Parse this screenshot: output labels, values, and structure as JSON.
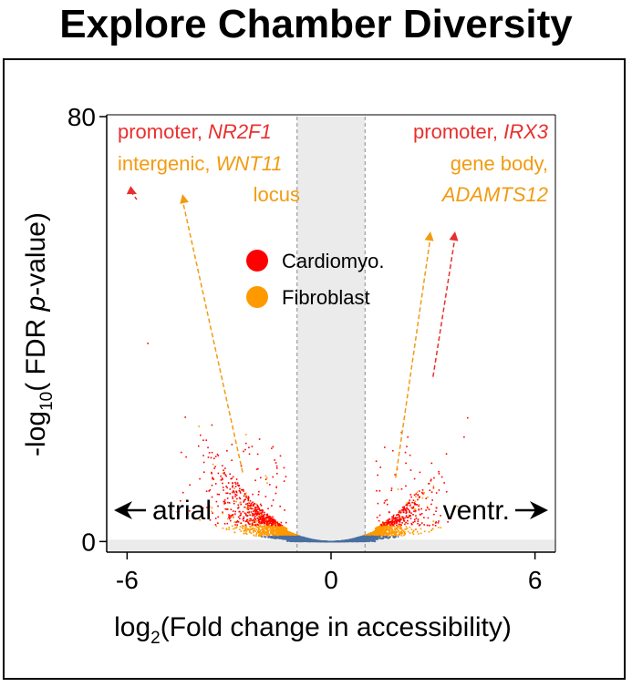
{
  "title": "Explore Chamber Diversity",
  "chart_data": {
    "type": "scatter",
    "title": "",
    "xlabel": "log2(Fold change in accessibility)",
    "xlabel_parts": {
      "pre": "log",
      "sub": "2",
      "post": "(Fold change in accessibility)"
    },
    "ylabel": "-log10( FDR p-value)",
    "ylabel_parts": {
      "pre": "-log",
      "sub": "10",
      "mid": "( FDR ",
      "italic": "p",
      "post": "-value)"
    },
    "xlim": [
      -6.6,
      6.6
    ],
    "ylim": [
      -2,
      80
    ],
    "xticks": [
      {
        "value": -6,
        "label": "-6"
      },
      {
        "value": 0,
        "label": "0"
      },
      {
        "value": 6,
        "label": "6"
      }
    ],
    "yticks": [
      {
        "value": 0,
        "label": "0"
      },
      {
        "value": 80,
        "label": "80"
      }
    ],
    "threshold_lines_x": [
      -1,
      1
    ],
    "grid": false,
    "legend_position": "center",
    "series": [
      {
        "name": "Cardiomyo.",
        "color": "#ff0000"
      },
      {
        "name": "Fibroblast",
        "color": "#ff9900"
      }
    ],
    "direction_labels": {
      "left": "atrial",
      "right": "ventr."
    },
    "highlights": [
      {
        "prefix": "promoter, ",
        "gene": "NR2F1",
        "suffix": "",
        "color": "#e8302e",
        "side": "left",
        "x": -5.9,
        "y": 66
      },
      {
        "prefix": "intergenic, ",
        "gene": "WNT11",
        "suffix": "locus",
        "color": "#f29b11",
        "side": "left",
        "x": -2.6,
        "y": 13
      },
      {
        "prefix": "promoter, ",
        "gene": "IRX3",
        "suffix": "",
        "color": "#e8302e",
        "side": "right",
        "x": 3.0,
        "y": 31
      },
      {
        "prefix": "gene body, ",
        "gene": "ADAMTS12",
        "suffix": "",
        "color": "#f29b11",
        "side": "right",
        "x": 1.9,
        "y": 12
      }
    ],
    "colors": {
      "axis": "#000000",
      "shade": "#ebebeb",
      "low_points": "#4a6fa0"
    }
  }
}
